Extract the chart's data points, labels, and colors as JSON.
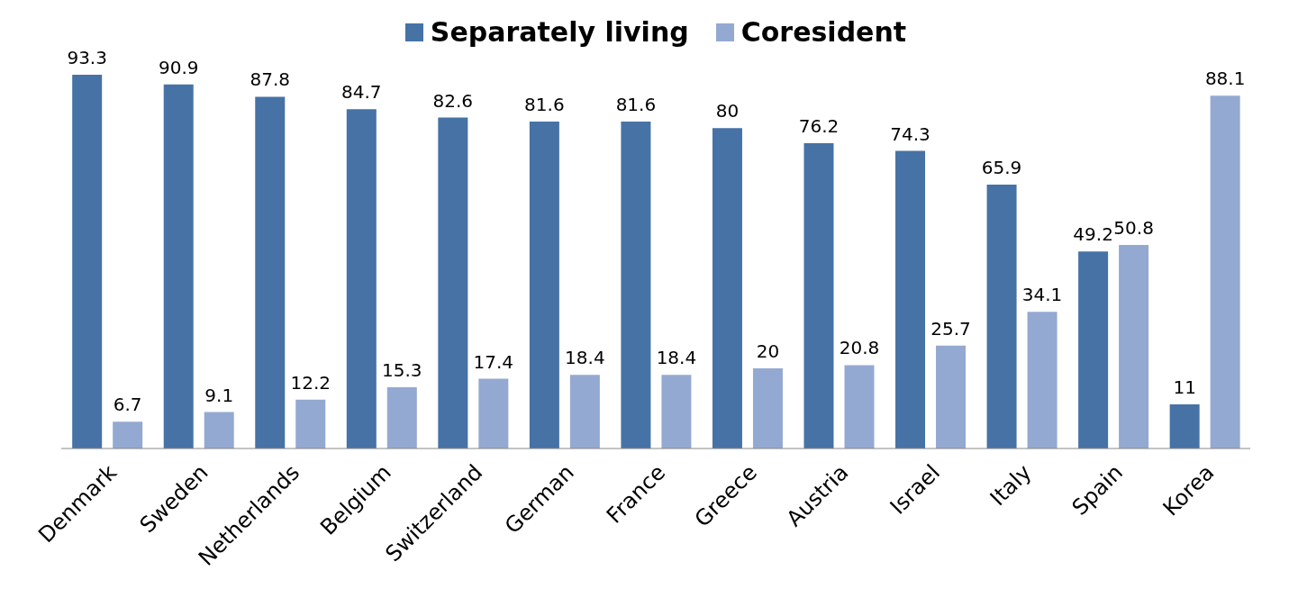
{
  "chart_data": {
    "type": "bar",
    "categories": [
      "Denmark",
      "Sweden",
      "Netherlands",
      "Belgium",
      "Switzerland",
      "German",
      "France",
      "Greece",
      "Austria",
      "Israel",
      "Italy",
      "Spain",
      "Korea"
    ],
    "series": [
      {
        "name": "Separately living",
        "color": "#4672a6",
        "values": [
          93.3,
          90.9,
          87.8,
          84.7,
          82.6,
          81.6,
          81.6,
          80,
          76.2,
          74.3,
          65.9,
          49.2,
          11
        ]
      },
      {
        "name": "Coresident",
        "color": "#94a9d1",
        "values": [
          6.7,
          9.1,
          12.2,
          15.3,
          17.4,
          18.4,
          18.4,
          20,
          20.8,
          25.7,
          34.1,
          50.8,
          88.1
        ]
      }
    ],
    "data_labels": true,
    "legend": "top",
    "grid": false
  }
}
